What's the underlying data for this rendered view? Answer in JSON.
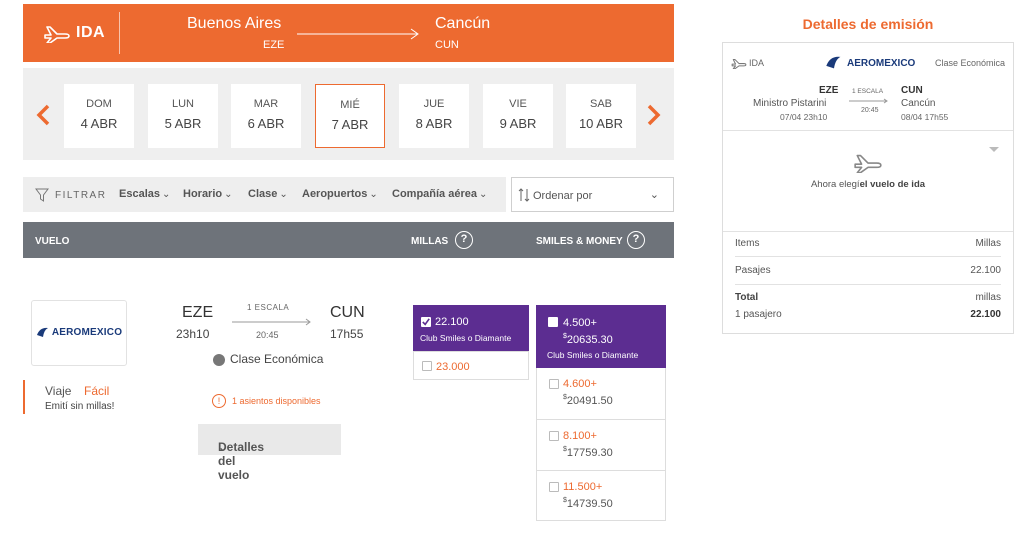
{
  "header": {
    "direction": "IDA",
    "origin_city": "Buenos Aires",
    "origin_code": "EZE",
    "destination_city": "Cancún",
    "destination_code": "CUN",
    "icon": "plane-icon"
  },
  "dates": [
    {
      "day": "DOM",
      "date": "4 ABR"
    },
    {
      "day": "LUN",
      "date": "5 ABR"
    },
    {
      "day": "MAR",
      "date": "6 ABR"
    },
    {
      "day": "MIÉ",
      "date": "7 ABR"
    },
    {
      "day": "JUE",
      "date": "8 ABR"
    },
    {
      "day": "VIE",
      "date": "9 ABR"
    },
    {
      "day": "SAB",
      "date": "10 ABR"
    }
  ],
  "date_selected_index": 3,
  "filters": {
    "label": "FILTRAR",
    "items": [
      "Escalas",
      "Horario",
      "Clase",
      "Aeropuertos",
      "Compañía aérea"
    ],
    "sort_label": "Ordenar por"
  },
  "table_header": {
    "vuelo": "VUELO",
    "millas": "MILLAS",
    "smiles_money": "SMILES & MONEY",
    "help": "?"
  },
  "flight": {
    "airline": "AEROMEXICO",
    "origin": "EZE",
    "origin_time": "23h10",
    "destination": "CUN",
    "destination_time": "17h55",
    "stops": "1 ESCALA",
    "duration": "20:45",
    "class": "Clase Económica",
    "seats": "1 asientos disponibles",
    "seats_icon": "!",
    "details_button": "Detalles del vuelo",
    "promo_1": "Viaje",
    "promo_2": "Fácil",
    "promo_3": "Emití sin millas!"
  },
  "millas_options": {
    "selected": {
      "value": "22.100",
      "club": "Club Smiles o Diamante"
    },
    "other": {
      "value": "23.000"
    }
  },
  "smiles_money_options": {
    "selected": {
      "miles": "4.500+",
      "money": "20635.30",
      "club": "Club Smiles o Diamante"
    },
    "others": [
      {
        "miles": "4.600+",
        "money": "20491.50"
      },
      {
        "miles": "8.100+",
        "money": "17759.30"
      },
      {
        "miles": "11.500+",
        "money": "14739.50"
      }
    ],
    "currency": "$"
  },
  "summary": {
    "title": "Detalles de emisión",
    "direction": "IDA",
    "airline": "AEROMEXICO",
    "class": "Clase Económica",
    "origin_code": "EZE",
    "origin_name": "Ministro Pistarini",
    "origin_time": "07/04 23h10",
    "stops": "1 ESCALA",
    "duration": "20:45",
    "destination_code": "CUN",
    "destination_name": "Cancún",
    "destination_time": "08/04 17h55",
    "message_prefix": "Ahora elegí",
    "message_bold": "el vuelo de ida",
    "items_label": "Items",
    "millas_label": "Millas",
    "pasajes_label": "Pasajes",
    "pasajes_value": "22.100",
    "total_label": "Total",
    "total_unit": "millas",
    "passengers": "1 pasajero",
    "total_value": "22.100"
  },
  "colors": {
    "accent": "#ed6a30",
    "purple": "#5c2d91",
    "header_gray": "#6e737a"
  }
}
